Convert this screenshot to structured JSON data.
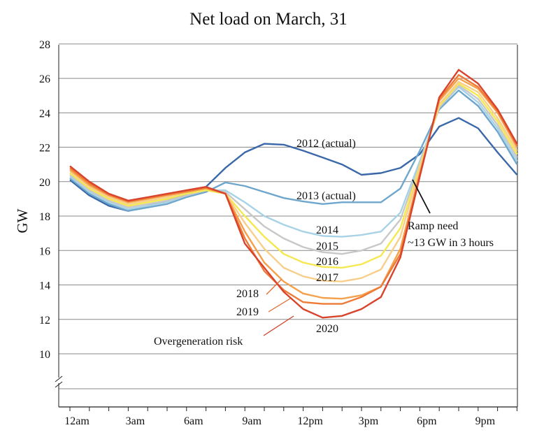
{
  "chart_data": {
    "type": "line",
    "title": "Net load on March, 31",
    "ylabel": "GW",
    "xlabel": "",
    "ylim": [
      7,
      28
    ],
    "yticks": [
      10,
      12,
      14,
      16,
      18,
      20,
      22,
      24,
      26,
      28
    ],
    "axis_break": true,
    "grid": "horizontal",
    "x_hours": [
      0,
      1,
      2,
      3,
      4,
      5,
      6,
      7,
      8,
      9,
      10,
      11,
      12,
      13,
      14,
      15,
      16,
      17,
      18,
      19,
      20,
      21,
      22,
      23
    ],
    "x_tick_hours": [
      0,
      3,
      6,
      9,
      12,
      15,
      18,
      21
    ],
    "x_tick_labels": [
      "12am",
      "3am",
      "6am",
      "9am",
      "12pm",
      "3pm",
      "6pm",
      "9pm"
    ],
    "series": [
      {
        "name": "2012 (actual)",
        "color": "#3a68a8",
        "values": [
          20.1,
          19.2,
          18.6,
          18.3,
          18.6,
          18.9,
          19.3,
          19.7,
          20.8,
          21.7,
          22.2,
          22.15,
          21.8,
          21.4,
          21.0,
          20.4,
          20.5,
          20.8,
          21.6,
          23.2,
          23.7,
          23.1,
          21.7,
          20.4
        ]
      },
      {
        "name": "2013 (actual)",
        "color": "#6ea6cc",
        "values": [
          20.2,
          19.3,
          18.7,
          18.3,
          18.5,
          18.7,
          19.1,
          19.4,
          19.95,
          19.75,
          19.4,
          19.05,
          18.85,
          18.7,
          18.8,
          18.8,
          18.8,
          19.6,
          21.8,
          24.2,
          25.3,
          24.4,
          22.9,
          21.0
        ]
      },
      {
        "name": "2014",
        "color": "#a8d2e6",
        "values": [
          20.3,
          19.4,
          18.8,
          18.4,
          18.6,
          18.8,
          19.2,
          19.5,
          19.5,
          18.8,
          18.0,
          17.5,
          17.1,
          16.85,
          16.8,
          16.9,
          17.1,
          18.2,
          21.2,
          24.3,
          25.5,
          24.6,
          23.1,
          21.2
        ]
      },
      {
        "name": "2015",
        "color": "#c8c8c8",
        "values": [
          20.4,
          19.5,
          18.9,
          18.5,
          18.7,
          18.9,
          19.2,
          19.5,
          19.4,
          18.4,
          17.4,
          16.7,
          16.2,
          15.9,
          15.8,
          16.0,
          16.4,
          17.8,
          21.0,
          24.3,
          25.6,
          24.8,
          23.3,
          21.4
        ]
      },
      {
        "name": "2016",
        "color": "#f5e850",
        "values": [
          20.5,
          19.6,
          19.0,
          18.6,
          18.8,
          19.0,
          19.3,
          19.5,
          19.3,
          18.0,
          16.8,
          15.8,
          15.3,
          15.05,
          15.0,
          15.2,
          15.7,
          17.3,
          20.9,
          24.4,
          25.7,
          25.0,
          23.5,
          21.6
        ]
      },
      {
        "name": "2017",
        "color": "#f8cf8a",
        "values": [
          20.6,
          19.7,
          19.1,
          18.7,
          18.9,
          19.1,
          19.4,
          19.6,
          19.3,
          17.6,
          16.1,
          15.0,
          14.5,
          14.25,
          14.2,
          14.4,
          14.9,
          16.8,
          20.8,
          24.5,
          25.8,
          25.2,
          23.7,
          21.8
        ]
      },
      {
        "name": "2018",
        "color": "#f5a04a",
        "values": [
          20.7,
          19.8,
          19.2,
          18.8,
          19.0,
          19.2,
          19.4,
          19.6,
          19.3,
          17.1,
          15.3,
          14.2,
          13.5,
          13.25,
          13.2,
          13.4,
          13.9,
          16.1,
          20.5,
          24.7,
          26.0,
          25.4,
          24.0,
          22.0
        ]
      },
      {
        "name": "2019",
        "color": "#ee7a38",
        "values": [
          20.8,
          19.9,
          19.25,
          18.85,
          19.05,
          19.25,
          19.45,
          19.65,
          19.3,
          16.7,
          14.8,
          13.7,
          13.0,
          12.9,
          12.9,
          13.3,
          13.9,
          15.8,
          20.4,
          24.8,
          26.2,
          25.5,
          24.1,
          22.1
        ]
      },
      {
        "name": "2020",
        "color": "#d8432c",
        "values": [
          20.9,
          20.0,
          19.3,
          18.9,
          19.1,
          19.3,
          19.5,
          19.7,
          19.3,
          16.4,
          15.0,
          13.6,
          12.6,
          12.1,
          12.2,
          12.6,
          13.3,
          15.6,
          20.3,
          24.9,
          26.5,
          25.7,
          24.2,
          22.2
        ]
      }
    ],
    "annotations": {
      "ramp_line1": "Ramp need",
      "ramp_line2": "~13 GW in 3 hours",
      "overgen": "Overgeneration risk"
    }
  }
}
